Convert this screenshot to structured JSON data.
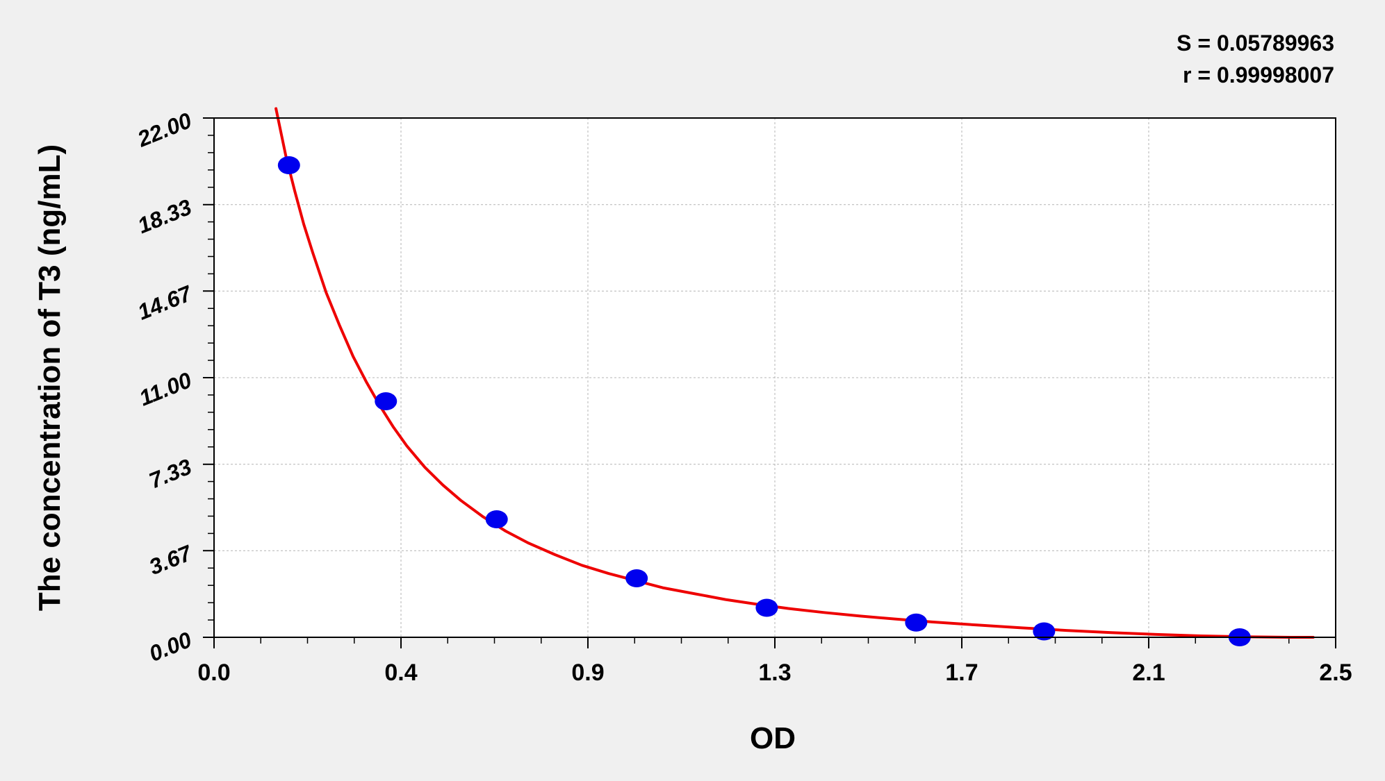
{
  "chart_data": {
    "type": "scatter",
    "title": "",
    "stats": {
      "s_label": "S = 0.05789963",
      "r_label": "r = 0.99998007"
    },
    "xlabel": "OD",
    "ylabel": "The concentration of  T3  (ng/mL)",
    "xlim": [
      0.0,
      2.5
    ],
    "ylim": [
      0.0,
      22.0
    ],
    "x_ticks": [
      "0.0",
      "0.4",
      "0.9",
      "1.3",
      "1.7",
      "2.1",
      "2.5"
    ],
    "x_tick_values": [
      0.0,
      0.4167,
      0.8333,
      1.25,
      1.6667,
      2.0833,
      2.5
    ],
    "y_ticks": [
      "0.00",
      "3.67",
      "7.33",
      "11.00",
      "14.67",
      "18.33",
      "22.00"
    ],
    "y_tick_values": [
      0.0,
      3.67,
      7.33,
      11.0,
      14.67,
      18.33,
      22.0
    ],
    "grid": true,
    "series": [
      {
        "type": "scatter",
        "color": "#0000ee",
        "x": [
          0.167,
          0.383,
          0.63,
          0.942,
          1.232,
          1.565,
          1.85,
          2.286
        ],
        "y": [
          20.0,
          10.0,
          5.0,
          2.5,
          1.25,
          0.625,
          0.25,
          0.0
        ]
      },
      {
        "type": "line",
        "color": "#ee0000",
        "x": [
          0.138,
          0.16,
          0.18,
          0.2,
          0.22,
          0.25,
          0.28,
          0.31,
          0.34,
          0.37,
          0.4,
          0.43,
          0.47,
          0.51,
          0.55,
          0.6,
          0.65,
          0.7,
          0.76,
          0.82,
          0.88,
          0.94,
          1.0,
          1.07,
          1.14,
          1.21,
          1.28,
          1.36,
          1.44,
          1.52,
          1.6,
          1.7,
          1.8,
          1.9,
          2.0,
          2.1,
          2.2,
          2.3,
          2.4,
          2.45
        ],
        "y": [
          22.4,
          20.4,
          18.9,
          17.5,
          16.3,
          14.6,
          13.2,
          11.9,
          10.8,
          9.8,
          8.9,
          8.1,
          7.2,
          6.45,
          5.8,
          5.1,
          4.5,
          4.0,
          3.5,
          3.05,
          2.7,
          2.4,
          2.1,
          1.85,
          1.6,
          1.4,
          1.22,
          1.05,
          0.9,
          0.77,
          0.65,
          0.52,
          0.4,
          0.29,
          0.2,
          0.12,
          0.06,
          0.02,
          0.0,
          0.0
        ]
      }
    ]
  }
}
